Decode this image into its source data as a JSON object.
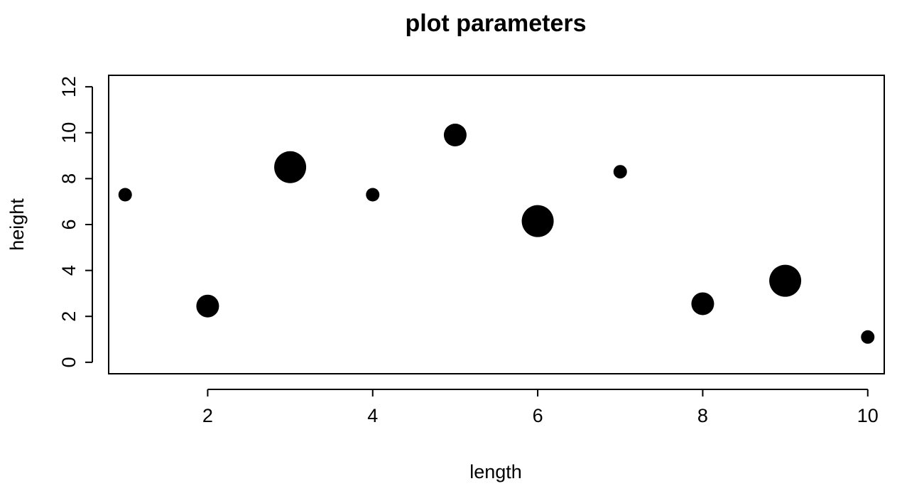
{
  "chart_data": {
    "type": "scatter",
    "title": "plot parameters",
    "xlabel": "length",
    "ylabel": "height",
    "xlim": [
      0.8,
      10.2
    ],
    "ylim": [
      -0.5,
      12.5
    ],
    "x_ticks": [
      2,
      4,
      6,
      8,
      10
    ],
    "y_ticks": [
      0,
      2,
      4,
      6,
      8,
      10,
      12
    ],
    "grid": false,
    "legend": "none",
    "marker": "filled-circle",
    "color": "#000000",
    "points": [
      {
        "x": 1,
        "y": 7.3,
        "size": 1
      },
      {
        "x": 2,
        "y": 2.45,
        "size": 2
      },
      {
        "x": 3,
        "y": 8.5,
        "size": 3
      },
      {
        "x": 4,
        "y": 7.3,
        "size": 1
      },
      {
        "x": 5,
        "y": 9.9,
        "size": 2
      },
      {
        "x": 6,
        "y": 6.15,
        "size": 3
      },
      {
        "x": 7,
        "y": 8.3,
        "size": 1
      },
      {
        "x": 8,
        "y": 2.55,
        "size": 2
      },
      {
        "x": 9,
        "y": 3.55,
        "size": 3
      },
      {
        "x": 10,
        "y": 1.1,
        "size": 1
      }
    ]
  }
}
